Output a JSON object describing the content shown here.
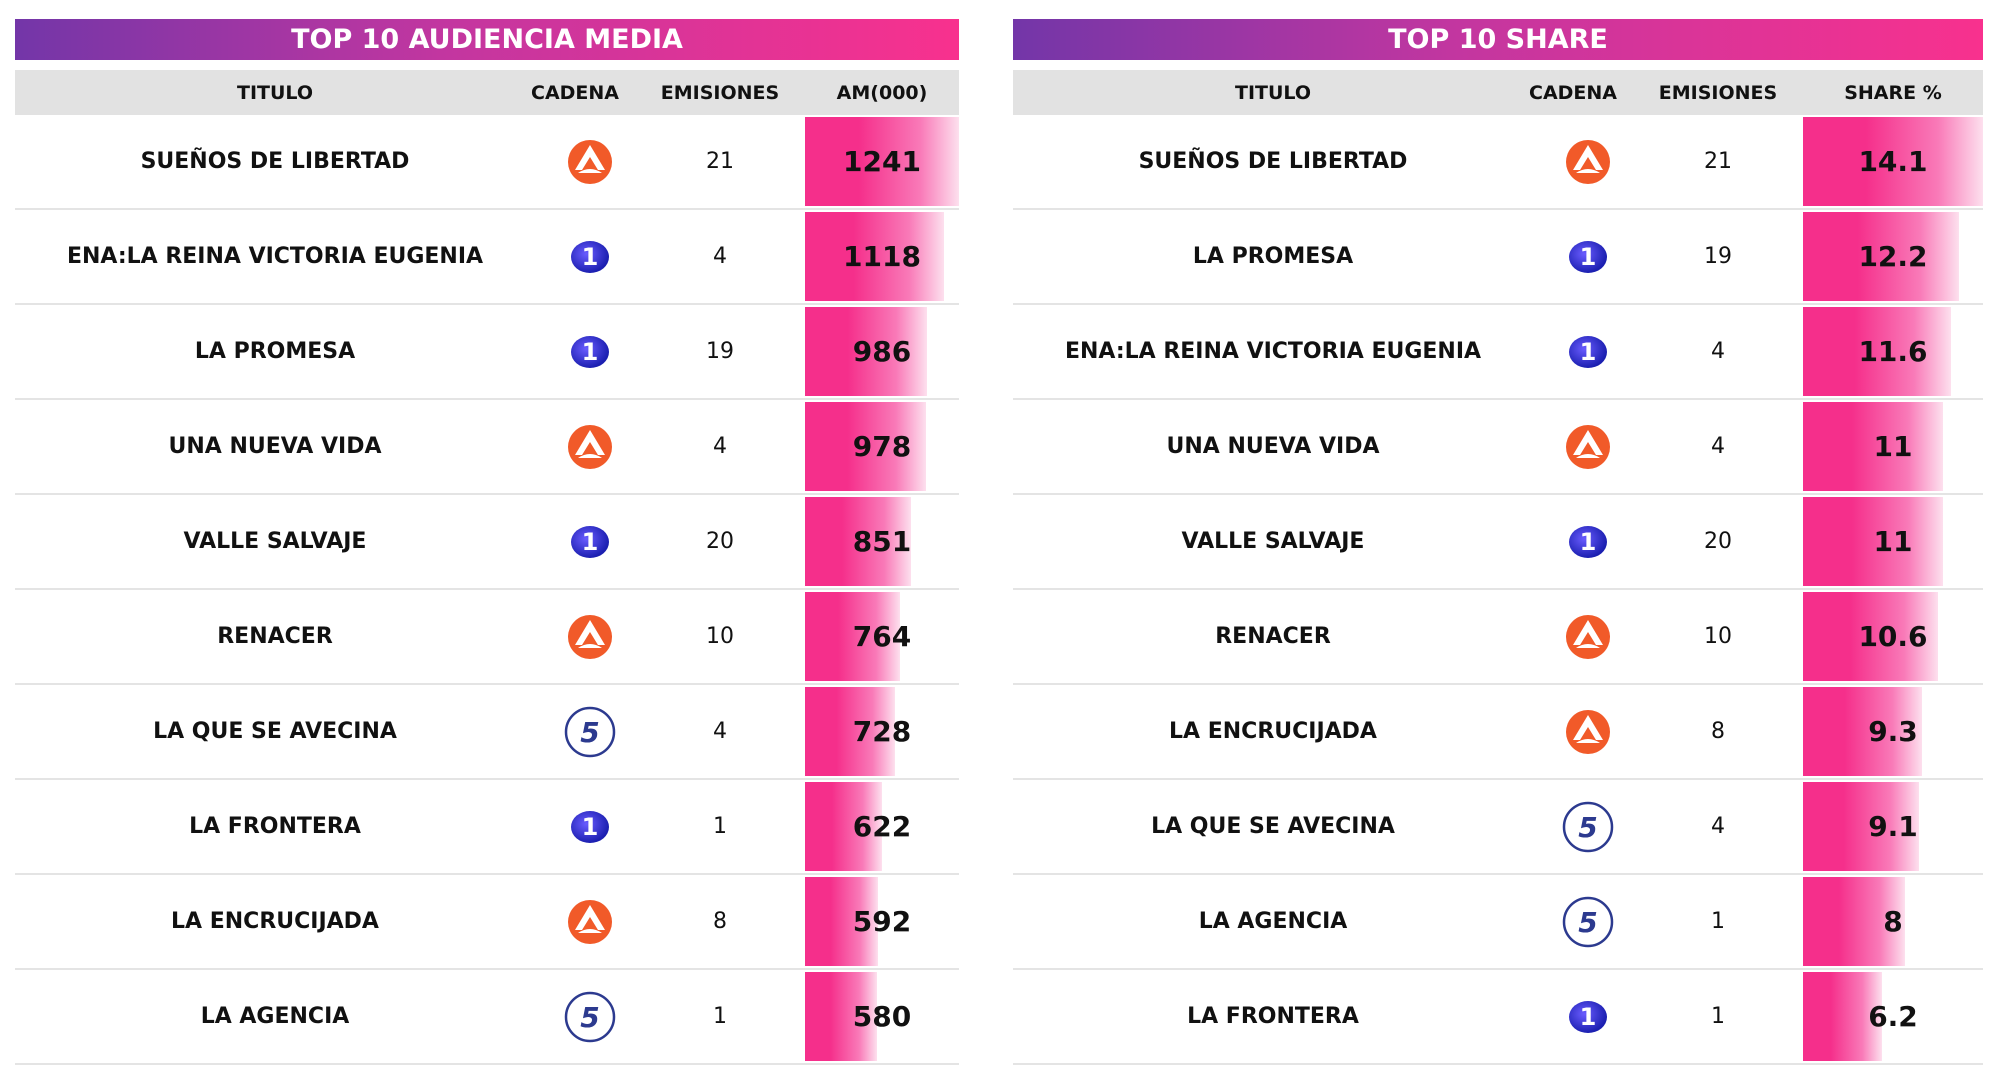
{
  "tables": [
    {
      "title": "TOP 10 AUDIENCIA MEDIA",
      "columns": [
        "TITULO",
        "CADENA",
        "EMISIONES",
        "AM(000)"
      ],
      "rows": [
        [
          "SUEÑOS DE LIBERTAD",
          null,
          21,
          1241
        ],
        [
          "ENA:LA REINA VICTORIA EUGENIA",
          "1",
          4,
          1118
        ],
        [
          "LA PROMESA",
          "1",
          19,
          986
        ],
        [
          "UNA NUEVA VIDA",
          null,
          4,
          978
        ],
        [
          "VALLE SALVAJE",
          "1",
          20,
          851
        ],
        [
          "RENACER",
          null,
          10,
          764
        ],
        [
          "LA QUE SE AVECINA",
          "5",
          4,
          728
        ],
        [
          "LA FRONTERA",
          "1",
          1,
          622
        ],
        [
          "LA ENCRUCIJADA",
          null,
          8,
          592
        ],
        [
          "LA AGENCIA",
          "5",
          1,
          580
        ]
      ]
    },
    {
      "title": "TOP 10 SHARE",
      "columns": [
        "TITULO",
        "CADENA",
        "EMISIONES",
        "SHARE %"
      ],
      "rows": [
        [
          "SUEÑOS DE LIBERTAD",
          null,
          21,
          14.1
        ],
        [
          "LA PROMESA",
          "1",
          19,
          12.2
        ],
        [
          "ENA:LA REINA VICTORIA EUGENIA",
          "1",
          4,
          11.6
        ],
        [
          "UNA NUEVA VIDA",
          null,
          4,
          11
        ],
        [
          "VALLE SALVAJE",
          "1",
          20,
          11
        ],
        [
          "RENACER",
          null,
          10,
          10.6
        ],
        [
          "LA ENCRUCIJADA",
          null,
          8,
          9.3
        ],
        [
          "LA QUE SE AVECINA",
          "5",
          4,
          9.1
        ],
        [
          "LA AGENCIA",
          "5",
          1,
          8
        ],
        [
          "LA FRONTERA",
          "1",
          1,
          6.2
        ]
      ]
    }
  ]
}
